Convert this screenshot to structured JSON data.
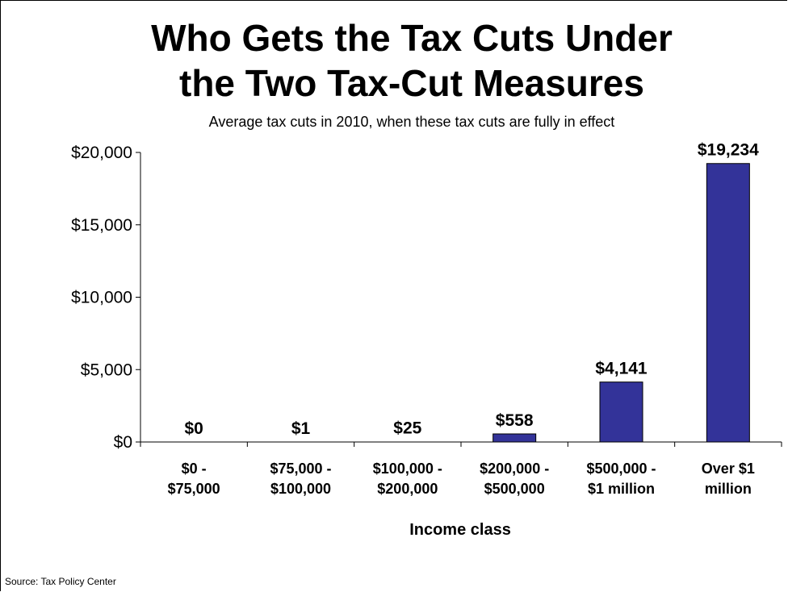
{
  "title_line1": "Who Gets the Tax Cuts Under",
  "title_line2": "the Two Tax-Cut Measures",
  "subtitle": "Average tax cuts in 2010, when these tax cuts are fully in effect",
  "source": "Source: Tax Policy Center",
  "colors": {
    "bar": "#333399",
    "axis": "#000000"
  },
  "chart_data": {
    "type": "bar",
    "title": "Who Gets the Tax Cuts Under the Two Tax-Cut Measures",
    "subtitle": "Average tax cuts in 2010, when these tax cuts are fully in effect",
    "xlabel": "Income class",
    "ylabel": "",
    "categories": [
      [
        "$0 -",
        "$75,000"
      ],
      [
        "$75,000 -",
        "$100,000"
      ],
      [
        "$100,000 -",
        "$200,000"
      ],
      [
        "$200,000 -",
        "$500,000"
      ],
      [
        "$500,000 -",
        "$1 million"
      ],
      [
        "Over $1",
        "million"
      ]
    ],
    "values": [
      0,
      1,
      25,
      558,
      4141,
      19234
    ],
    "value_labels": [
      "$0",
      "$1",
      "$25",
      "$558",
      "$4,141",
      "$19,234"
    ],
    "ylim": [
      0,
      20000
    ],
    "yticks": [
      0,
      5000,
      10000,
      15000,
      20000
    ],
    "ytick_labels": [
      "$0",
      "$5,000",
      "$10,000",
      "$15,000",
      "$20,000"
    ],
    "grid": false,
    "legend": "none"
  }
}
